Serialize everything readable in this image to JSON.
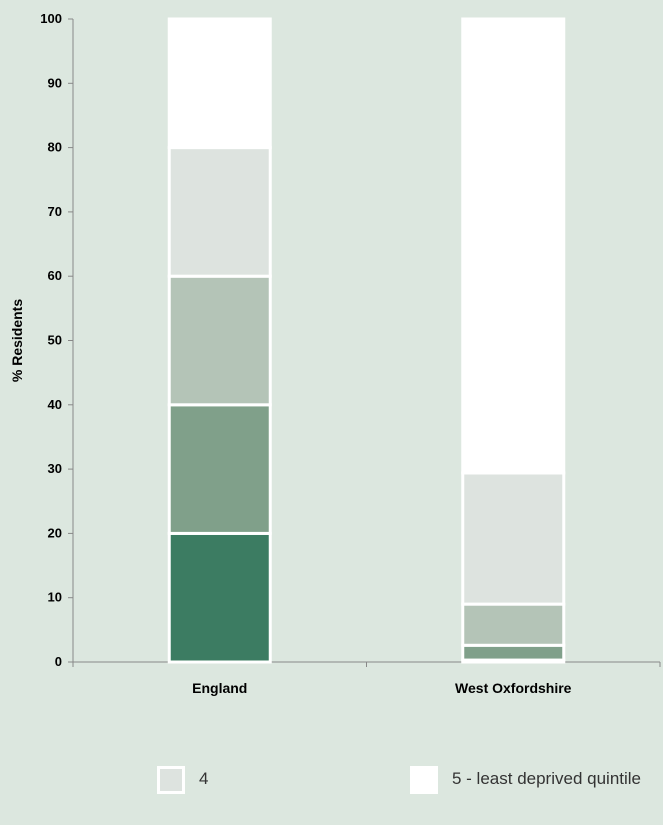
{
  "chart_data": {
    "type": "bar",
    "stacked": true,
    "categories": [
      "England",
      "West Oxfordshire"
    ],
    "series": [
      {
        "name": "",
        "color": "#3c7c62",
        "values": [
          20,
          0.3
        ]
      },
      {
        "name": "",
        "color": "#80a08a",
        "values": [
          20,
          2.3
        ]
      },
      {
        "name": "",
        "color": "#b4c4b7",
        "values": [
          20,
          6.4
        ]
      },
      {
        "name": "4",
        "color": "#dde3df",
        "values": [
          20,
          20.4
        ]
      },
      {
        "name": "5 - least deprived quintile",
        "color": "#ffffff",
        "values": [
          20,
          70.6
        ]
      }
    ],
    "ylabel": "% Residents",
    "xlabel": "",
    "ylim": [
      0,
      100
    ],
    "yticks": [
      0,
      10,
      20,
      30,
      40,
      50,
      60,
      70,
      80,
      90,
      100
    ],
    "grid": false,
    "legend_position": "bottom"
  },
  "legend": {
    "items": [
      {
        "label": "4",
        "color": "#dde3df"
      },
      {
        "label": "5 - least deprived quintile",
        "color": "#ffffff"
      }
    ]
  }
}
